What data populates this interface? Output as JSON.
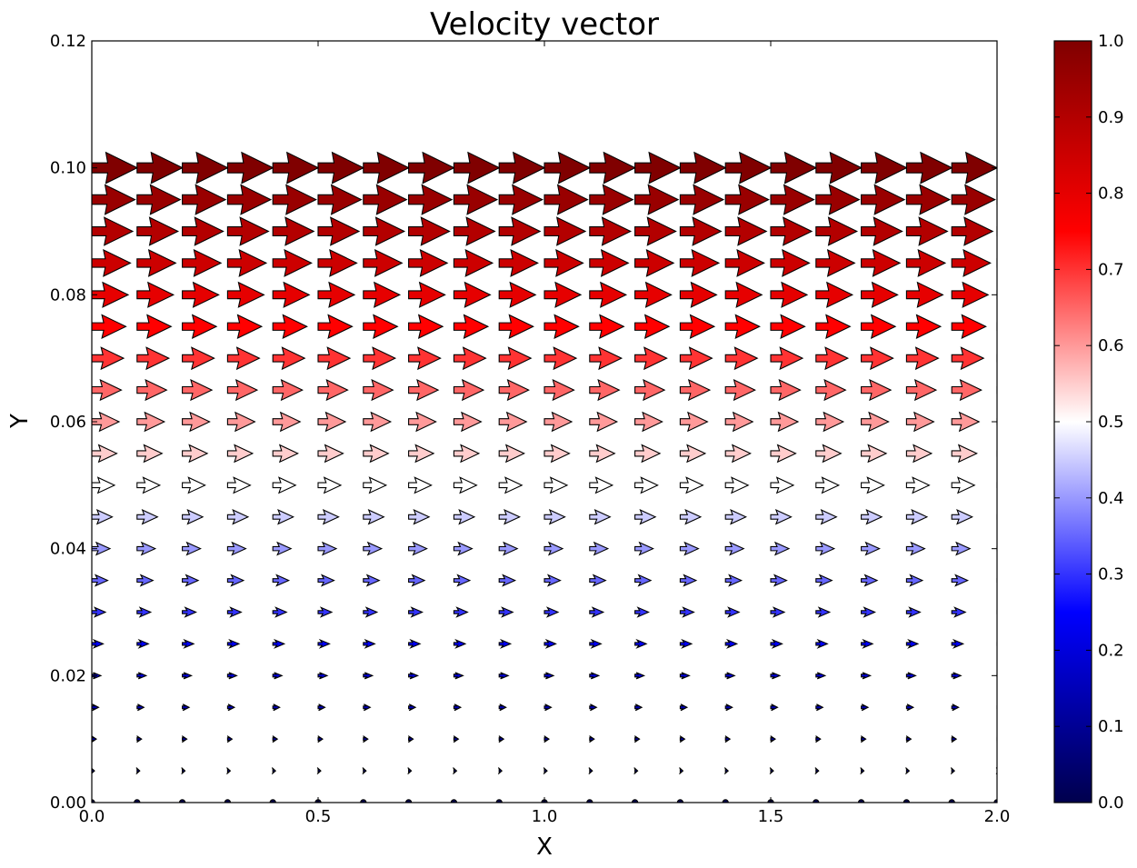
{
  "chart_data": {
    "type": "quiver",
    "title": "Velocity vector",
    "xlabel": "X",
    "ylabel": "Y",
    "xlim": [
      0.0,
      2.0
    ],
    "ylim": [
      0.0,
      0.12
    ],
    "xticks": [
      "0.0",
      "0.5",
      "1.0",
      "1.5",
      "2.0"
    ],
    "yticks": [
      "0.00",
      "0.02",
      "0.04",
      "0.06",
      "0.08",
      "0.10",
      "0.12"
    ],
    "grid": false,
    "x": [
      0.0,
      0.1,
      0.2,
      0.3,
      0.4,
      0.5,
      0.6,
      0.7,
      0.8,
      0.9,
      1.0,
      1.1,
      1.2,
      1.3,
      1.4,
      1.5,
      1.6,
      1.7,
      1.8,
      1.9,
      2.0
    ],
    "y": [
      0.0,
      0.005,
      0.01,
      0.015,
      0.02,
      0.025,
      0.03,
      0.035,
      0.04,
      0.045,
      0.05,
      0.055,
      0.06,
      0.065,
      0.07,
      0.075,
      0.08,
      0.085,
      0.09,
      0.095,
      0.1
    ],
    "u": [
      0.0,
      0.05,
      0.1,
      0.15,
      0.2,
      0.25,
      0.3,
      0.35,
      0.4,
      0.45,
      0.5,
      0.55,
      0.6,
      0.65,
      0.7,
      0.75,
      0.8,
      0.85,
      0.9,
      0.95,
      1.0
    ],
    "v": 0.0,
    "colormap": "seismic",
    "colorbar": {
      "range": [
        0.0,
        1.0
      ],
      "ticks": [
        "0.0",
        "0.1",
        "0.2",
        "0.3",
        "0.4",
        "0.5",
        "0.6",
        "0.7",
        "0.8",
        "0.9",
        "1.0"
      ],
      "colors": [
        "#00004d",
        "#0000ff",
        "#ffffff",
        "#ff0000",
        "#800000"
      ]
    }
  }
}
